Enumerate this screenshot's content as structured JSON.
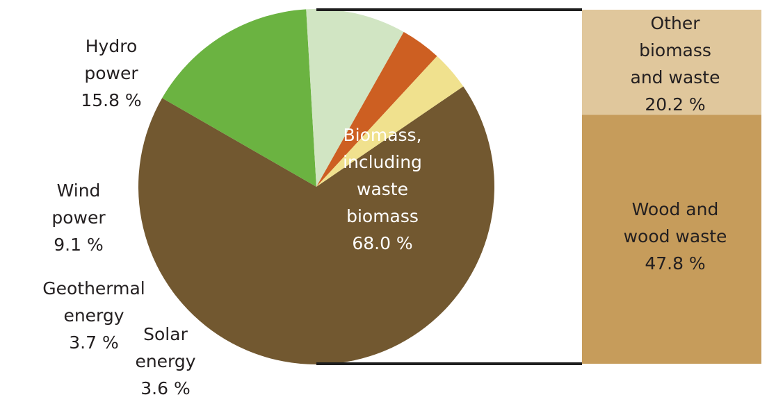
{
  "chart_data": {
    "type": "pie",
    "pie": {
      "slices": [
        {
          "name": "Biomass, including waste biomass",
          "value": 68.0,
          "color": "#725830",
          "lines": [
            "Biomass,",
            "including",
            "waste",
            "biomass",
            "68.0 %"
          ]
        },
        {
          "name": "Hydro power",
          "value": 15.8,
          "color": "#6bb341",
          "lines": [
            "Hydro",
            "power",
            "15.8 %"
          ]
        },
        {
          "name": "Wind power",
          "value": 9.1,
          "color": "#d1e5c3",
          "lines": [
            "Wind",
            "power",
            "9.1 %"
          ]
        },
        {
          "name": "Geothermal energy",
          "value": 3.7,
          "color": "#cd5f22",
          "lines": [
            "Geothermal",
            "energy",
            "3.7 %"
          ]
        },
        {
          "name": "Solar energy",
          "value": 3.6,
          "color": "#f0e18e",
          "lines": [
            "Solar",
            "energy",
            "3.6 %"
          ]
        }
      ]
    },
    "breakdown": {
      "of": "Biomass, including waste biomass",
      "segments": [
        {
          "name": "Other biomass and waste",
          "value": 20.2,
          "color": "#e0c79c",
          "lines": [
            "Other",
            "biomass",
            "and waste",
            "20.2 %"
          ]
        },
        {
          "name": "Wood and wood waste",
          "value": 47.8,
          "color": "#c69c5b",
          "lines": [
            "Wood and",
            "wood waste",
            "47.8 %"
          ]
        }
      ]
    }
  }
}
